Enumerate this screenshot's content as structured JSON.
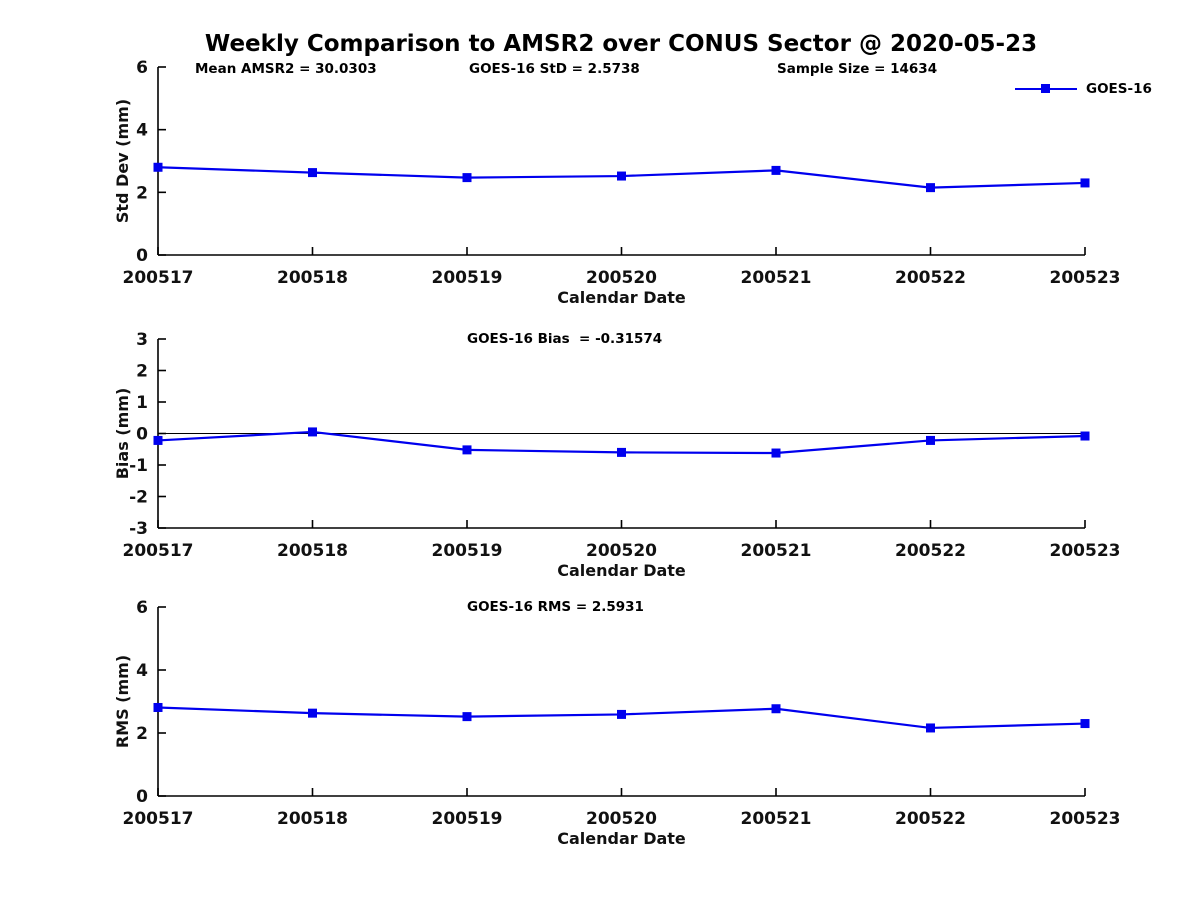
{
  "title": "Weekly Comparison to AMSR2 over CONUS Sector @ 2020-05-23",
  "header_annotations": [
    {
      "label": "Mean AMSR2 = 30.0303"
    },
    {
      "label": "GOES-16 StD = 2.5738"
    },
    {
      "label": "Sample Size = 14634"
    }
  ],
  "legend": {
    "label": "GOES-16",
    "position": "top-right"
  },
  "colors": {
    "line": "#0000EE",
    "axis": "#000000",
    "text": "#111111",
    "background": "#ffffff"
  },
  "chart_data": [
    {
      "type": "line",
      "categories": [
        "200517",
        "200518",
        "200519",
        "200520",
        "200521",
        "200522",
        "200523"
      ],
      "series": [
        {
          "name": "GOES-16",
          "values": [
            2.8,
            2.63,
            2.47,
            2.52,
            2.7,
            2.15,
            2.3
          ]
        }
      ],
      "xlabel": "Calendar Date",
      "ylabel": "Std Dev (mm)",
      "ylim": [
        0,
        6
      ],
      "yticks": [
        0,
        2,
        4,
        6
      ],
      "annotation": "",
      "zero_line": false,
      "grid": false,
      "marker": "square"
    },
    {
      "type": "line",
      "categories": [
        "200517",
        "200518",
        "200519",
        "200520",
        "200521",
        "200522",
        "200523"
      ],
      "series": [
        {
          "name": "GOES-16",
          "values": [
            -0.22,
            0.05,
            -0.52,
            -0.6,
            -0.62,
            -0.22,
            -0.08
          ]
        }
      ],
      "xlabel": "Calendar Date",
      "ylabel": "Bias (mm)",
      "ylim": [
        -3,
        3
      ],
      "yticks": [
        -3,
        -2,
        -1,
        0,
        1,
        2,
        3
      ],
      "annotation": "GOES-16 Bias  = -0.31574",
      "zero_line": true,
      "grid": false,
      "marker": "square"
    },
    {
      "type": "line",
      "categories": [
        "200517",
        "200518",
        "200519",
        "200520",
        "200521",
        "200522",
        "200523"
      ],
      "series": [
        {
          "name": "GOES-16",
          "values": [
            2.81,
            2.63,
            2.52,
            2.59,
            2.77,
            2.16,
            2.3
          ]
        }
      ],
      "xlabel": "Calendar Date",
      "ylabel": "RMS (mm)",
      "ylim": [
        0,
        6
      ],
      "yticks": [
        0,
        2,
        4,
        6
      ],
      "annotation": "GOES-16 RMS = 2.5931",
      "zero_line": false,
      "grid": false,
      "marker": "square"
    }
  ]
}
